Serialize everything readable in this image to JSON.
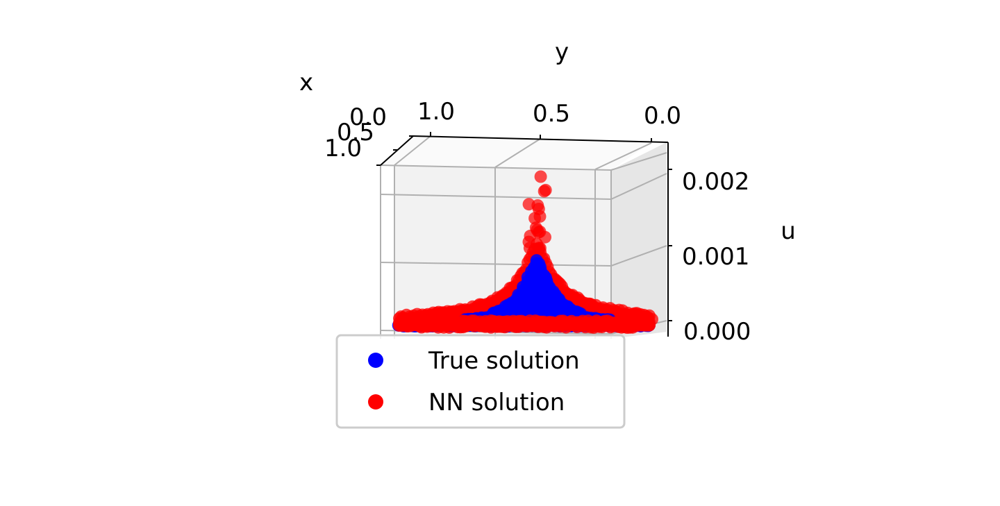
{
  "chart_data": {
    "type": "scatter",
    "projection": "3d",
    "title": "",
    "axes": {
      "x": {
        "label": "x",
        "ticks": [
          "0.0",
          "0.5",
          "1.0"
        ],
        "range": [
          0.0,
          1.0
        ]
      },
      "y": {
        "label": "y",
        "ticks": [
          "1.0",
          "0.5",
          "0.0"
        ],
        "range": [
          0.0,
          1.0
        ]
      },
      "u": {
        "label": "u",
        "ticks": [
          "0.000",
          "0.001",
          "0.002"
        ],
        "range": [
          0.0,
          0.0022
        ]
      }
    },
    "grid": true,
    "legend": {
      "placement": "bottom-center"
    },
    "series": [
      {
        "name": "True solution",
        "color": "#0000ff",
        "peak_u": 0.00095,
        "peak_y": 0.45
      },
      {
        "name": "NN solution",
        "color": "#ff0000",
        "peak_u": 0.00215,
        "peak_y": 0.45
      }
    ]
  }
}
